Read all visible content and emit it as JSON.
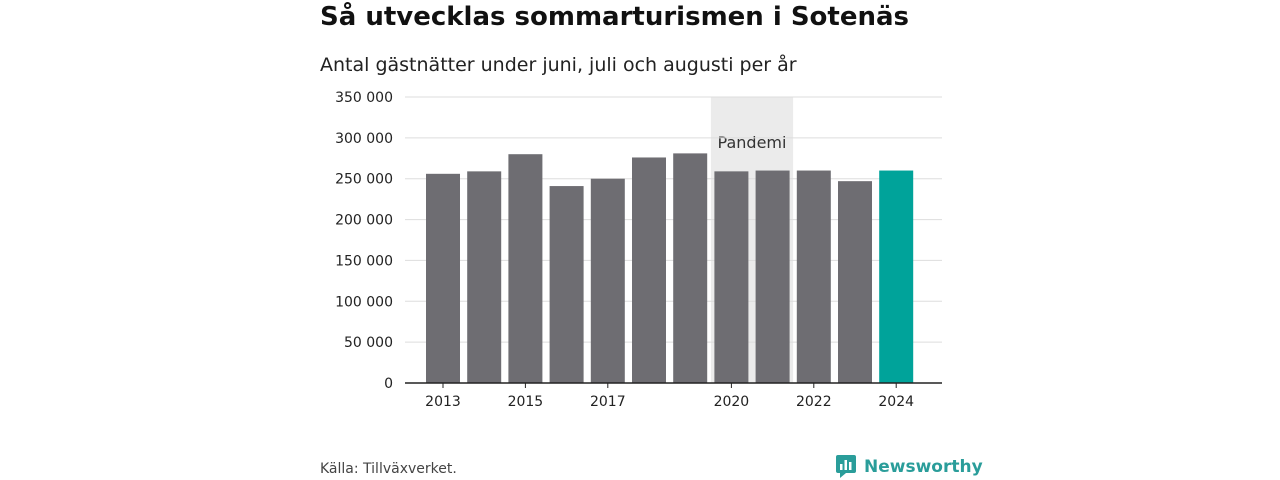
{
  "header": {
    "title": "Så utvecklas sommarturismen i Sotenäs",
    "subtitle": "Antal gästnätter under juni, juli och augusti per år"
  },
  "footer": {
    "source": "Källa: Tillväxverket.",
    "brand": "Newsworthy"
  },
  "colors": {
    "bar": "#6e6d72",
    "highlight": "#00a39a",
    "band": "#ebebeb",
    "grid": "#dddddd",
    "brand": "#2a9d9a"
  },
  "icons": {
    "brand": "newsworthy-logo-icon"
  },
  "chart_data": {
    "type": "bar",
    "title": "Så utvecklas sommarturismen i Sotenäs",
    "subtitle": "Antal gästnätter under juni, juli och augusti per år",
    "categories": [
      "2013",
      "2014",
      "2015",
      "2016",
      "2017",
      "2018",
      "2019",
      "2020",
      "2021",
      "2022",
      "2023",
      "2024"
    ],
    "values": [
      256000,
      259000,
      280000,
      241000,
      250000,
      276000,
      281000,
      259000,
      260000,
      260000,
      247000,
      260000
    ],
    "highlight_category": "2024",
    "ylim": [
      0,
      350000
    ],
    "yticks": [
      0,
      50000,
      100000,
      150000,
      200000,
      250000,
      300000,
      350000
    ],
    "ytick_labels": [
      "0",
      "50 000",
      "100 000",
      "150 000",
      "200 000",
      "250 000",
      "300 000",
      "350 000"
    ],
    "xtick_labels_shown": [
      "2013",
      "2015",
      "2017",
      "2020",
      "2022",
      "2024"
    ],
    "grid": true,
    "legend": "none",
    "annotations": [
      {
        "label": "Pandemi",
        "from_category": "2020",
        "to_category": "2021"
      }
    ]
  }
}
